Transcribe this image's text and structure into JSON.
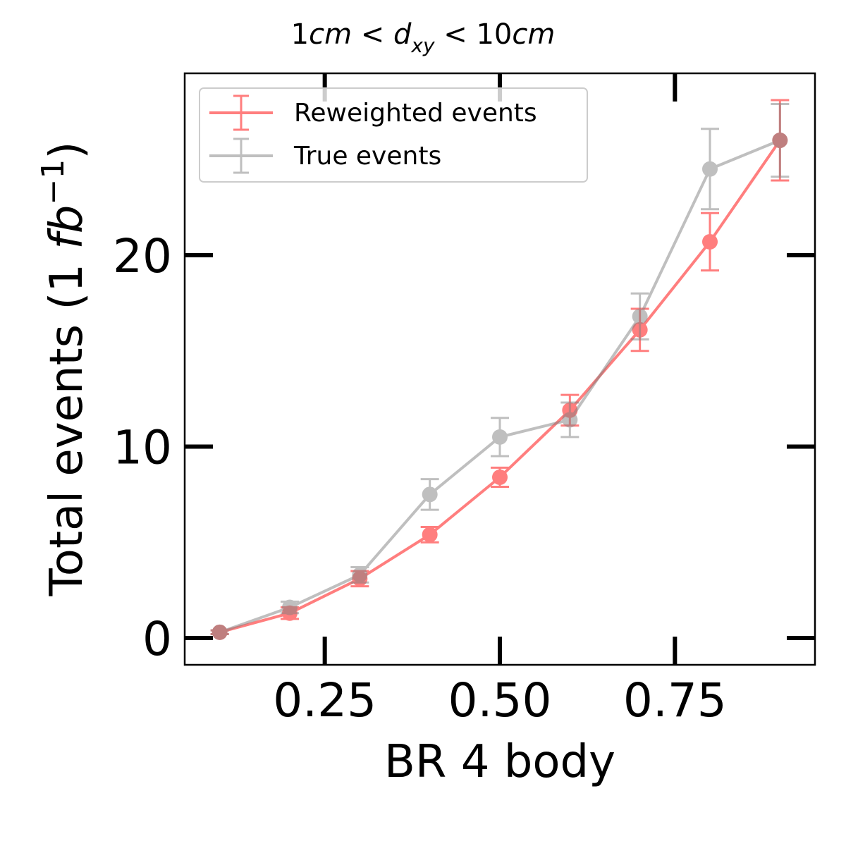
{
  "chart_data": {
    "type": "line",
    "title": "1cm < d_xy < 10cm",
    "title_parts": {
      "pre": "1",
      "unit1": "cm",
      "lt1": " < ",
      "d": "d",
      "sub": "xy",
      "lt2": " < ",
      "num2": "10",
      "unit2": "cm"
    },
    "xlabel": "BR 4 body",
    "ylabel": "Total events (1 fb⁻¹)",
    "ylabel_parts": {
      "pre": "Total events (1 ",
      "unit": "fb",
      "sup": "−1",
      "post": ")"
    },
    "xlim": [
      0.05,
      0.95
    ],
    "ylim": [
      -1.4,
      29.5
    ],
    "x_ticks": [
      {
        "value": 0.25,
        "label": "0.25"
      },
      {
        "value": 0.5,
        "label": "0.50"
      },
      {
        "value": 0.75,
        "label": "0.75"
      }
    ],
    "y_ticks": [
      {
        "value": 0,
        "label": "0"
      },
      {
        "value": 10,
        "label": "10"
      },
      {
        "value": 20,
        "label": "20"
      }
    ],
    "grid": false,
    "legend_position": "upper-left",
    "series": [
      {
        "name": "Reweighted events",
        "color": "#ff0000",
        "opacity": 0.5,
        "x": [
          0.1,
          0.2,
          0.3,
          0.4,
          0.5,
          0.6,
          0.7,
          0.8,
          0.9
        ],
        "y": [
          0.3,
          1.3,
          3.1,
          5.4,
          8.4,
          11.9,
          16.1,
          20.7,
          26.0
        ],
        "yerr": [
          0.1,
          0.3,
          0.4,
          0.4,
          0.5,
          0.8,
          1.1,
          1.5,
          2.1
        ]
      },
      {
        "name": "True events",
        "color": "#808080",
        "opacity": 0.5,
        "x": [
          0.1,
          0.2,
          0.3,
          0.4,
          0.5,
          0.6,
          0.7,
          0.8,
          0.9
        ],
        "y": [
          0.3,
          1.6,
          3.3,
          7.5,
          10.5,
          11.4,
          16.8,
          24.5,
          26.0
        ],
        "yerr": [
          0.1,
          0.3,
          0.4,
          0.8,
          1.0,
          0.9,
          1.2,
          2.1,
          1.9
        ]
      }
    ]
  }
}
